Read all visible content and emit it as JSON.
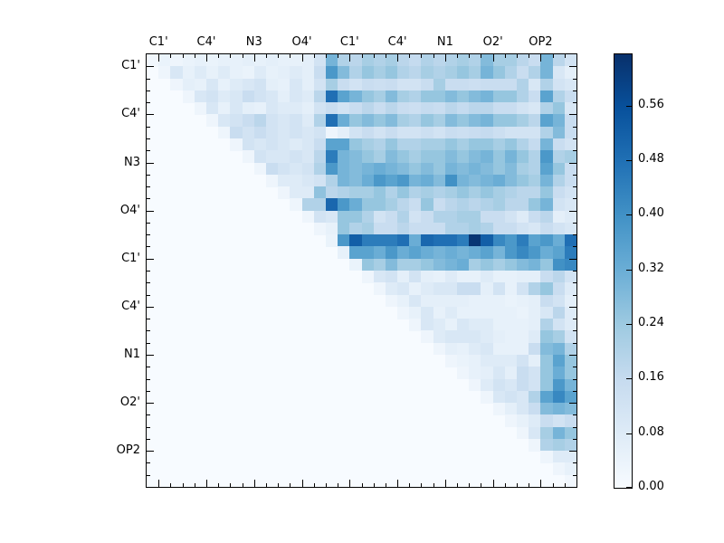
{
  "chart_data": {
    "type": "heatmap",
    "title": "",
    "xlabel": "",
    "ylabel": "",
    "matrix_size": 36,
    "triangle": "upper",
    "label_every": 4,
    "x_tick_labels": [
      "C1'",
      "C4'",
      "N3",
      "O4'",
      "C1'",
      "C4'",
      "N1",
      "O2'",
      "OP2"
    ],
    "y_tick_labels": [
      "C1'",
      "C4'",
      "N3",
      "O4'",
      "C1'",
      "C4'",
      "N1",
      "O2'",
      "OP2"
    ],
    "grid": false,
    "background_value_color": "#f7fbff",
    "colormap": {
      "name": "Blues",
      "anchors": [
        "#f7fbff",
        "#deebf7",
        "#c6dbef",
        "#9ecae1",
        "#6baed6",
        "#4292c6",
        "#2171b5",
        "#08519c",
        "#08306b"
      ]
    },
    "colorbar": {
      "position": "right",
      "tick_labels": [
        "0.00",
        "0.08",
        "0.16",
        "0.24",
        "0.32",
        "0.40",
        "0.48",
        "0.56"
      ],
      "tick_values": [
        0.0,
        0.08,
        0.16,
        0.24,
        0.32,
        0.4,
        0.48,
        0.56
      ],
      "vmin": 0.0,
      "vmax": 0.635
    },
    "values_upper": [
      [
        0.02,
        0.04,
        0.03,
        0.04,
        0.05,
        0.04,
        0.05,
        0.05,
        0.06,
        0.05,
        0.06,
        0.05,
        0.05,
        0.06,
        0.12,
        0.3,
        0.2,
        0.18,
        0.22,
        0.2,
        0.22,
        0.18,
        0.16,
        0.2,
        0.18,
        0.2,
        0.22,
        0.2,
        0.28,
        0.22,
        0.22,
        0.18,
        0.15,
        0.3,
        0.18,
        0.12
      ],
      [
        0.03,
        0.1,
        0.05,
        0.08,
        0.05,
        0.08,
        0.05,
        0.04,
        0.08,
        0.05,
        0.06,
        0.08,
        0.06,
        0.15,
        0.38,
        0.28,
        0.2,
        0.25,
        0.22,
        0.25,
        0.2,
        0.18,
        0.22,
        0.2,
        0.22,
        0.25,
        0.22,
        0.3,
        0.25,
        0.2,
        0.15,
        0.2,
        0.3,
        0.1,
        0.06
      ],
      [
        0.03,
        0.06,
        0.05,
        0.1,
        0.05,
        0.08,
        0.1,
        0.12,
        0.06,
        0.05,
        0.1,
        0.06,
        0.12,
        0.22,
        0.15,
        0.12,
        0.15,
        0.14,
        0.15,
        0.12,
        0.12,
        0.15,
        0.22,
        0.15,
        0.15,
        0.14,
        0.15,
        0.15,
        0.15,
        0.2,
        0.1,
        0.2,
        0.12,
        0.1
      ],
      [
        0.03,
        0.1,
        0.12,
        0.08,
        0.1,
        0.15,
        0.12,
        0.1,
        0.06,
        0.1,
        0.08,
        0.18,
        0.48,
        0.35,
        0.3,
        0.25,
        0.22,
        0.28,
        0.22,
        0.2,
        0.25,
        0.25,
        0.28,
        0.25,
        0.28,
        0.3,
        0.25,
        0.25,
        0.2,
        0.15,
        0.35,
        0.2,
        0.15
      ],
      [
        0.03,
        0.1,
        0.05,
        0.1,
        0.06,
        0.05,
        0.1,
        0.08,
        0.08,
        0.06,
        0.12,
        0.15,
        0.12,
        0.15,
        0.18,
        0.15,
        0.18,
        0.15,
        0.14,
        0.16,
        0.15,
        0.18,
        0.16,
        0.18,
        0.18,
        0.15,
        0.15,
        0.12,
        0.1,
        0.2,
        0.25,
        0.1
      ],
      [
        0.03,
        0.1,
        0.12,
        0.15,
        0.18,
        0.12,
        0.1,
        0.12,
        0.08,
        0.2,
        0.48,
        0.32,
        0.25,
        0.28,
        0.25,
        0.28,
        0.22,
        0.2,
        0.25,
        0.22,
        0.28,
        0.25,
        0.28,
        0.3,
        0.25,
        0.25,
        0.22,
        0.18,
        0.35,
        0.3,
        0.15
      ],
      [
        0.03,
        0.15,
        0.12,
        0.15,
        0.12,
        0.1,
        0.12,
        0.1,
        0.12,
        0.03,
        0.06,
        0.12,
        0.15,
        0.12,
        0.15,
        0.12,
        0.12,
        0.14,
        0.12,
        0.15,
        0.14,
        0.15,
        0.16,
        0.14,
        0.12,
        0.12,
        0.12,
        0.2,
        0.28,
        0.15
      ],
      [
        0.03,
        0.12,
        0.1,
        0.12,
        0.1,
        0.08,
        0.1,
        0.15,
        0.35,
        0.35,
        0.25,
        0.22,
        0.2,
        0.25,
        0.2,
        0.2,
        0.22,
        0.22,
        0.25,
        0.22,
        0.25,
        0.25,
        0.22,
        0.25,
        0.2,
        0.16,
        0.3,
        0.15,
        0.12
      ],
      [
        0.03,
        0.12,
        0.1,
        0.1,
        0.12,
        0.1,
        0.18,
        0.45,
        0.3,
        0.28,
        0.25,
        0.22,
        0.28,
        0.25,
        0.22,
        0.25,
        0.25,
        0.28,
        0.25,
        0.28,
        0.3,
        0.25,
        0.3,
        0.25,
        0.2,
        0.38,
        0.2,
        0.22
      ],
      [
        0.03,
        0.15,
        0.12,
        0.1,
        0.12,
        0.2,
        0.38,
        0.3,
        0.28,
        0.3,
        0.32,
        0.3,
        0.28,
        0.25,
        0.28,
        0.25,
        0.3,
        0.28,
        0.3,
        0.28,
        0.25,
        0.28,
        0.22,
        0.2,
        0.35,
        0.25,
        0.15
      ],
      [
        0.03,
        0.08,
        0.08,
        0.1,
        0.12,
        0.2,
        0.3,
        0.28,
        0.32,
        0.38,
        0.35,
        0.38,
        0.3,
        0.32,
        0.28,
        0.4,
        0.3,
        0.28,
        0.3,
        0.32,
        0.28,
        0.25,
        0.22,
        0.3,
        0.2,
        0.15
      ],
      [
        0.03,
        0.08,
        0.08,
        0.26,
        0.18,
        0.2,
        0.22,
        0.22,
        0.25,
        0.2,
        0.25,
        0.2,
        0.22,
        0.2,
        0.22,
        0.25,
        0.22,
        0.25,
        0.22,
        0.2,
        0.18,
        0.18,
        0.25,
        0.15,
        0.12
      ],
      [
        0.03,
        0.2,
        0.2,
        0.5,
        0.38,
        0.32,
        0.25,
        0.25,
        0.22,
        0.18,
        0.15,
        0.25,
        0.15,
        0.18,
        0.2,
        0.18,
        0.2,
        0.22,
        0.18,
        0.18,
        0.25,
        0.3,
        0.12,
        0.1
      ],
      [
        0.03,
        0.12,
        0.1,
        0.25,
        0.25,
        0.2,
        0.12,
        0.15,
        0.2,
        0.12,
        0.15,
        0.2,
        0.2,
        0.22,
        0.22,
        0.15,
        0.15,
        0.12,
        0.08,
        0.15,
        0.18,
        0.06,
        0.08
      ],
      [
        0.03,
        0.05,
        0.25,
        0.2,
        0.22,
        0.15,
        0.15,
        0.18,
        0.15,
        0.15,
        0.15,
        0.2,
        0.2,
        0.22,
        0.2,
        0.15,
        0.15,
        0.12,
        0.1,
        0.15,
        0.12,
        0.1
      ],
      [
        0.04,
        0.38,
        0.52,
        0.45,
        0.45,
        0.45,
        0.48,
        0.32,
        0.5,
        0.48,
        0.48,
        0.45,
        0.62,
        0.52,
        0.42,
        0.38,
        0.45,
        0.35,
        0.38,
        0.32,
        0.48
      ],
      [
        0.05,
        0.35,
        0.35,
        0.32,
        0.38,
        0.32,
        0.35,
        0.32,
        0.3,
        0.32,
        0.3,
        0.32,
        0.35,
        0.3,
        0.38,
        0.42,
        0.38,
        0.32,
        0.35,
        0.45
      ],
      [
        0.04,
        0.25,
        0.22,
        0.28,
        0.22,
        0.22,
        0.25,
        0.28,
        0.3,
        0.32,
        0.22,
        0.25,
        0.22,
        0.25,
        0.28,
        0.3,
        0.25,
        0.4,
        0.42
      ],
      [
        0.03,
        0.1,
        0.12,
        0.06,
        0.12,
        0.06,
        0.05,
        0.08,
        0.05,
        0.05,
        0.08,
        0.05,
        0.05,
        0.06,
        0.06,
        0.15,
        0.18,
        0.12
      ],
      [
        0.03,
        0.08,
        0.1,
        0.05,
        0.08,
        0.1,
        0.1,
        0.15,
        0.15,
        0.06,
        0.12,
        0.05,
        0.12,
        0.2,
        0.25,
        0.15,
        0.08
      ],
      [
        0.03,
        0.05,
        0.1,
        0.06,
        0.06,
        0.06,
        0.06,
        0.05,
        0.05,
        0.05,
        0.04,
        0.05,
        0.06,
        0.15,
        0.12,
        0.06
      ],
      [
        0.03,
        0.05,
        0.1,
        0.05,
        0.08,
        0.05,
        0.05,
        0.05,
        0.05,
        0.05,
        0.04,
        0.06,
        0.1,
        0.18,
        0.08
      ],
      [
        0.03,
        0.1,
        0.08,
        0.05,
        0.1,
        0.08,
        0.08,
        0.05,
        0.05,
        0.05,
        0.06,
        0.2,
        0.12,
        0.08
      ],
      [
        0.03,
        0.08,
        0.1,
        0.1,
        0.1,
        0.08,
        0.06,
        0.05,
        0.05,
        0.08,
        0.25,
        0.22,
        0.12
      ],
      [
        0.03,
        0.06,
        0.05,
        0.08,
        0.1,
        0.05,
        0.05,
        0.05,
        0.15,
        0.28,
        0.3,
        0.2
      ],
      [
        0.03,
        0.04,
        0.05,
        0.08,
        0.08,
        0.08,
        0.12,
        0.06,
        0.25,
        0.35,
        0.25
      ],
      [
        0.03,
        0.05,
        0.06,
        0.1,
        0.06,
        0.15,
        0.12,
        0.25,
        0.32,
        0.25
      ],
      [
        0.03,
        0.08,
        0.12,
        0.1,
        0.15,
        0.12,
        0.25,
        0.38,
        0.3
      ],
      [
        0.03,
        0.1,
        0.12,
        0.1,
        0.2,
        0.35,
        0.42,
        0.35
      ],
      [
        0.03,
        0.06,
        0.1,
        0.15,
        0.28,
        0.3,
        0.28
      ],
      [
        0.03,
        0.05,
        0.08,
        0.15,
        0.12,
        0.15
      ],
      [
        0.03,
        0.1,
        0.22,
        0.3,
        0.25
      ],
      [
        0.03,
        0.2,
        0.22,
        0.2
      ],
      [
        0.03,
        0.08,
        0.08
      ],
      [
        0.03,
        0.05
      ],
      [
        0.02
      ]
    ]
  }
}
